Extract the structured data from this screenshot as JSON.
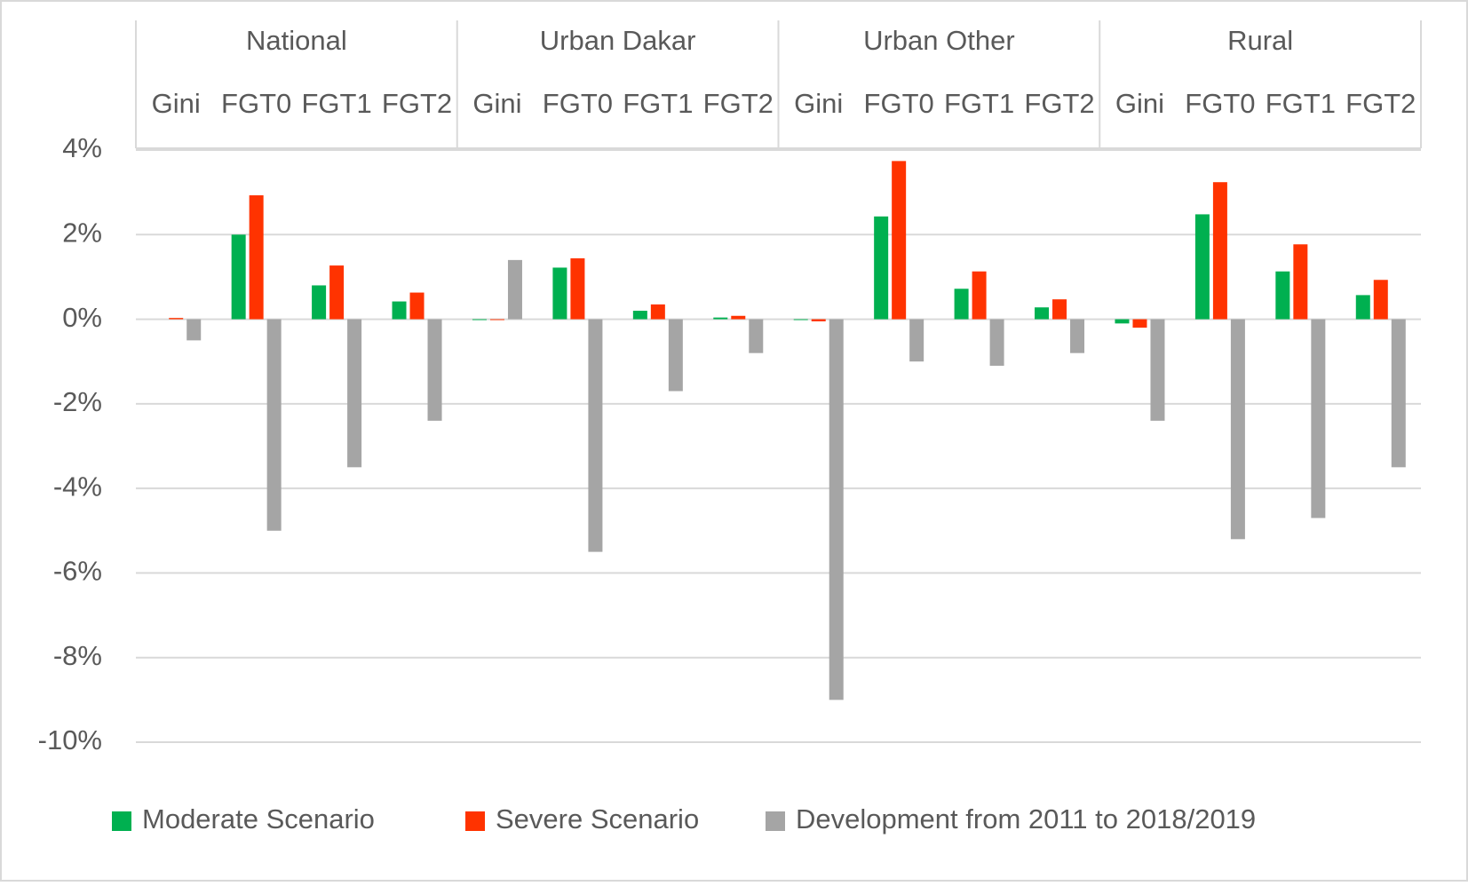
{
  "chart_data": {
    "type": "bar",
    "groups": [
      "National",
      "Urban Dakar",
      "Urban Other",
      "Rural"
    ],
    "categories": [
      "Gini",
      "FGT0",
      "FGT1",
      "FGT2",
      "Gini",
      "FGT0",
      "FGT1",
      "FGT2",
      "Gini",
      "FGT0",
      "FGT1",
      "FGT2",
      "Gini",
      "FGT0",
      "FGT1",
      "FGT2"
    ],
    "series": [
      {
        "name": "Moderate Scenario",
        "color": "#00b050",
        "values": [
          0,
          2.0,
          0.8,
          0.42,
          -0.02,
          1.22,
          0.2,
          0.04,
          -0.02,
          2.43,
          0.72,
          0.28,
          -0.1,
          2.48,
          1.13,
          0.57
        ]
      },
      {
        "name": "Severe Scenario",
        "color": "#ff3300",
        "values": [
          0.03,
          2.93,
          1.27,
          0.63,
          -0.02,
          1.44,
          0.35,
          0.08,
          -0.05,
          3.74,
          1.13,
          0.47,
          -0.2,
          3.24,
          1.77,
          0.93
        ]
      },
      {
        "name": "Development from 2011 to 2018/2019",
        "color": "#a5a5a5",
        "values": [
          -0.5,
          -5.0,
          -3.5,
          -2.4,
          1.4,
          -5.5,
          -1.7,
          -0.8,
          -9.0,
          -1.0,
          -1.1,
          -0.8,
          -2.4,
          -5.2,
          -4.7,
          -3.5
        ]
      }
    ],
    "ylim": [
      -10,
      4
    ],
    "yticks": [
      {
        "value": -10,
        "label": "-10%"
      },
      {
        "value": -8,
        "label": "-8%"
      },
      {
        "value": -6,
        "label": "-6%"
      },
      {
        "value": -4,
        "label": "-4%"
      },
      {
        "value": -2,
        "label": "-2%"
      },
      {
        "value": 0,
        "label": "0%"
      },
      {
        "value": 2,
        "label": "2%"
      },
      {
        "value": 4,
        "label": "4%"
      }
    ],
    "grid": true,
    "legend": "bottom"
  }
}
